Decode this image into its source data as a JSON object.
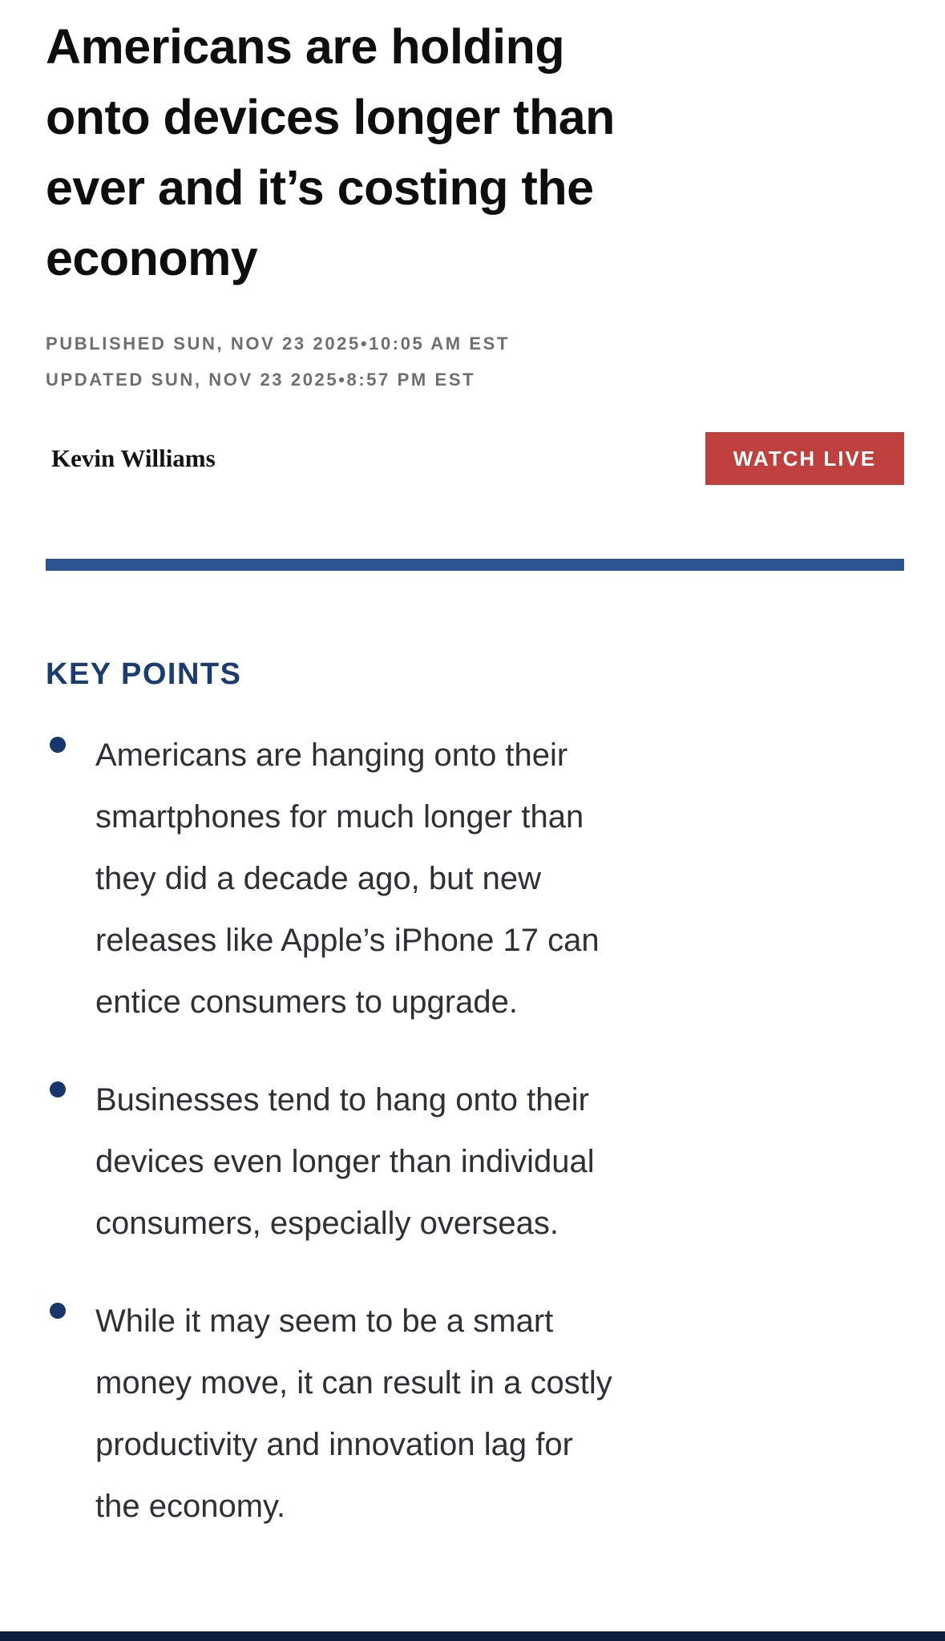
{
  "colors": {
    "headline": "#0d0e10",
    "timestamp": "#6e6e6e",
    "author": "#141414",
    "watch_live_bg": "#c0403d",
    "watch_live_text": "#ffffff",
    "divider": "#2b5492",
    "key_points_heading": "#1b3c6e",
    "bullet_dot": "#17366b",
    "bullet_text": "#2e3036",
    "bottom_bar": "#0e1c3e",
    "page_bg": "#ffffff"
  },
  "article": {
    "headline": "Americans are holding onto devices longer than ever and it’s costing the economy",
    "headline_lines": [
      "Americans are holding",
      "onto devices longer than",
      "ever and it’s costing the",
      "economy"
    ],
    "published": "PUBLISHED SUN, NOV 23 2025•10:05 AM EST",
    "updated": "UPDATED SUN, NOV 23 2025•8:57 PM EST",
    "author": "Kevin Williams",
    "watch_live_label": "WATCH LIVE"
  },
  "key_points": {
    "heading": "KEY POINTS",
    "bullets": [
      {
        "text": "Americans are hanging onto their smartphones for much longer than they did a decade ago, but new releases like Apple’s iPhone 17 can entice consumers to upgrade.",
        "lines": [
          "Americans are hanging onto their",
          "smartphones for much longer than",
          "they did a decade ago, but new",
          "releases like Apple’s iPhone 17 can",
          "entice consumers to upgrade."
        ]
      },
      {
        "text": "Businesses tend to hang onto their devices even longer than individual consumers, especially overseas.",
        "lines": [
          "Businesses tend to hang onto their",
          "devices even longer than individual",
          "consumers, especially overseas."
        ]
      },
      {
        "text": "While it may seem to be a smart money move, it can result in a costly productivity and innovation lag for the economy.",
        "lines": [
          "While it may seem to be a smart",
          "money move, it can result in a costly",
          "productivity and innovation lag for",
          "the economy."
        ]
      }
    ]
  }
}
